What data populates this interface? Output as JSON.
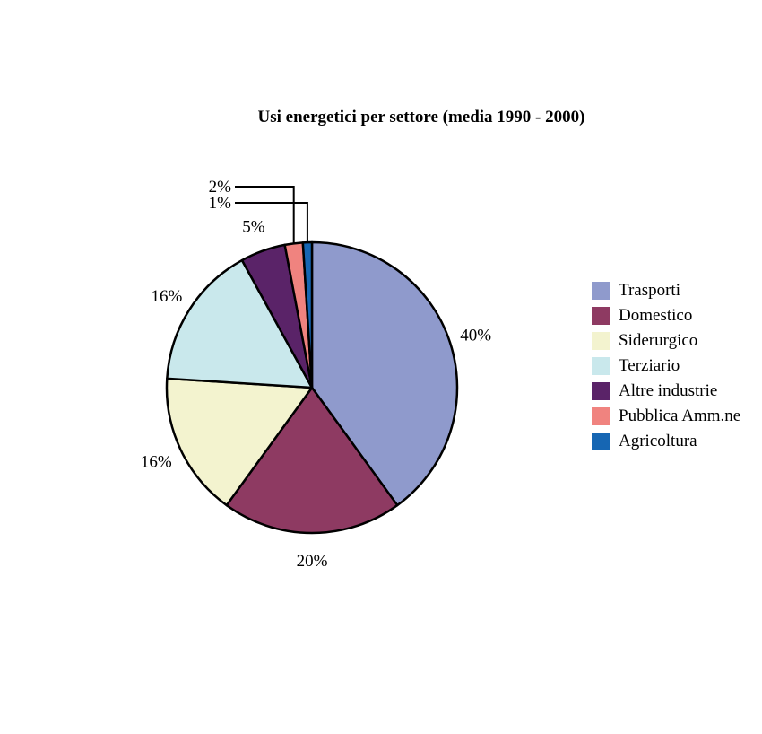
{
  "chart_data": {
    "type": "pie",
    "title": "Usi energetici per settore (media 1990 - 2000)",
    "slices": [
      {
        "label": "Trasporti",
        "value": 40,
        "value_label": "40%",
        "color": "#8f9acc"
      },
      {
        "label": "Domestico",
        "value": 20,
        "value_label": "20%",
        "color": "#8e3a62"
      },
      {
        "label": "Siderurgico",
        "value": 16,
        "value_label": "16%",
        "color": "#f3f3cf"
      },
      {
        "label": "Terziario",
        "value": 16,
        "value_label": "16%",
        "color": "#c9e8ec"
      },
      {
        "label": "Altre industrie",
        "value": 5,
        "value_label": "5%",
        "color": "#5a2368"
      },
      {
        "label": "Pubblica Amm.ne",
        "value": 2,
        "value_label": "2%",
        "color": "#f0837f"
      },
      {
        "label": "Agricoltura",
        "value": 1,
        "value_label": "1%",
        "color": "#1666b3"
      }
    ],
    "legend_position": "right"
  }
}
